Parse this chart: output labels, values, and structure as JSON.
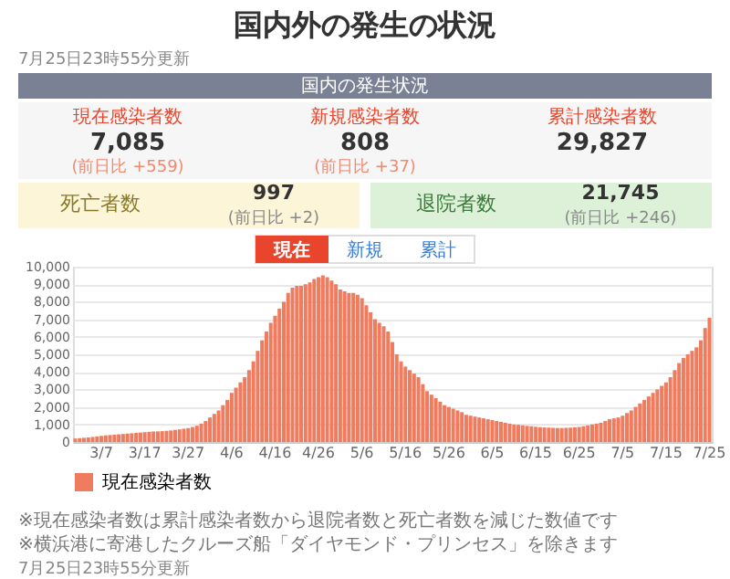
{
  "chart_data": {
    "type": "bar",
    "title": "国内外の発生の状況",
    "annotations": [
      "7月25日23時55分更新",
      "国内の発生状況",
      "現在感染者数",
      "7,085",
      "(前日比 +559)",
      "新規感染者数",
      "808",
      "(前日比 +37)",
      "累計感染者数",
      "29,827",
      "死亡者数",
      "997",
      "(前日比 +2)",
      "退院者数",
      "21,745",
      "(前日比 +246)",
      "現在",
      "新規",
      "累計",
      "※現在感染者数は累計感染者数から退院者数と死亡者数を減じた数値です",
      "※横浜港に寄港したクルーズ船「ダイヤモンド・プリンセス」を除きます",
      "7月25日23時55分更新"
    ],
    "categories": [
      null,
      null,
      null,
      null,
      null,
      null,
      "3/7",
      null,
      null,
      null,
      null,
      null,
      null,
      null,
      null,
      null,
      "3/17",
      null,
      null,
      null,
      null,
      null,
      null,
      null,
      null,
      null,
      "3/27",
      null,
      null,
      null,
      null,
      null,
      null,
      null,
      null,
      null,
      "4/6",
      null,
      null,
      null,
      null,
      null,
      null,
      null,
      null,
      null,
      "4/16",
      null,
      null,
      null,
      null,
      null,
      null,
      null,
      null,
      null,
      "4/26",
      null,
      null,
      null,
      null,
      null,
      null,
      null,
      null,
      null,
      "5/6",
      null,
      null,
      null,
      null,
      null,
      null,
      null,
      null,
      null,
      "5/16",
      null,
      null,
      null,
      null,
      null,
      null,
      null,
      null,
      null,
      "5/26",
      null,
      null,
      null,
      null,
      null,
      null,
      null,
      null,
      null,
      "6/5",
      null,
      null,
      null,
      null,
      null,
      null,
      null,
      null,
      null,
      "6/15",
      null,
      null,
      null,
      null,
      null,
      null,
      null,
      null,
      null,
      "6/25",
      null,
      null,
      null,
      null,
      null,
      null,
      null,
      null,
      null,
      "7/5",
      null,
      null,
      null,
      null,
      null,
      null,
      null,
      null,
      null,
      "7/15",
      null,
      null,
      null,
      null,
      null,
      null,
      null,
      null,
      null,
      "7/25"
    ],
    "series": [
      {
        "name": "現在感染者数",
        "color": "#f07c5f",
        "values": [
          200,
          220,
          240,
          260,
          290,
          320,
          350,
          380,
          400,
          420,
          440,
          460,
          480,
          500,
          520,
          540,
          560,
          580,
          600,
          610,
          620,
          640,
          660,
          690,
          720,
          760,
          800,
          850,
          930,
          1050,
          1200,
          1400,
          1600,
          1800,
          2100,
          2400,
          2800,
          3100,
          3400,
          3700,
          4100,
          4600,
          5200,
          5800,
          6300,
          6800,
          7200,
          7600,
          8000,
          8500,
          8800,
          8900,
          8900,
          9000,
          9100,
          9300,
          9400,
          9500,
          9400,
          9200,
          9000,
          8700,
          8600,
          8500,
          8500,
          8400,
          8200,
          7800,
          7400,
          7000,
          6800,
          6600,
          6300,
          5700,
          5000,
          4600,
          4300,
          4100,
          3900,
          3700,
          3300,
          2900,
          2700,
          2500,
          2300,
          2100,
          2000,
          1900,
          1800,
          1700,
          1550,
          1500,
          1450,
          1400,
          1350,
          1300,
          1250,
          1200,
          1150,
          1100,
          1050,
          1000,
          980,
          950,
          920,
          900,
          870,
          850,
          830,
          820,
          810,
          800,
          800,
          810,
          820,
          840,
          860,
          900,
          950,
          1000,
          1050,
          1100,
          1200,
          1300,
          1350,
          1400,
          1500,
          1650,
          1800,
          2000,
          2200,
          2400,
          2600,
          2800,
          3000,
          3200,
          3400,
          3700,
          4100,
          4500,
          4800,
          5000,
          5200,
          5400,
          5800,
          6500,
          7085
        ]
      }
    ],
    "ylim": [
      0,
      10000
    ],
    "yticks": [
      0,
      {
        "value": 1000,
        "label": "1,000"
      },
      {
        "value": 2000,
        "label": "2,000"
      },
      {
        "value": 3000,
        "label": "3,000"
      },
      {
        "value": 4000,
        "label": "4,000"
      },
      {
        "value": 5000,
        "label": "5,000"
      },
      {
        "value": 6000,
        "label": "6,000"
      },
      {
        "value": 7000,
        "label": "7,000"
      },
      {
        "value": 8000,
        "label": "8,000"
      },
      {
        "value": 9000,
        "label": "9,000"
      },
      {
        "value": 10000,
        "label": "10,000"
      }
    ],
    "grid": "y",
    "legend": "bottom"
  }
}
